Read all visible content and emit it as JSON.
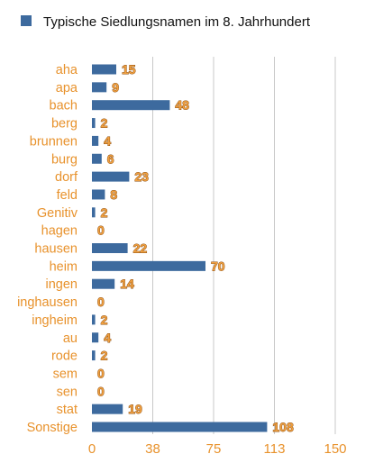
{
  "chart_data": {
    "type": "bar",
    "orientation": "horizontal",
    "legend_position": "top-left",
    "grid": true,
    "colors": {
      "bar": "#3d6a9e",
      "label": "#e8922c",
      "data_label": "#f0a040",
      "gridline": "#c8c8c8"
    },
    "series": [
      {
        "name": "Typische Siedlungsnamen im 8. Jahrhundert",
        "values": [
          15,
          9,
          48,
          2,
          4,
          6,
          23,
          8,
          2,
          0,
          22,
          70,
          14,
          0,
          2,
          4,
          2,
          0,
          0,
          19,
          108
        ]
      }
    ],
    "categories": [
      "aha",
      "apa",
      "bach",
      "berg",
      "brunnen",
      "burg",
      "dorf",
      "feld",
      "Genitiv",
      "hagen",
      "hausen",
      "heim",
      "ingen",
      "inghausen",
      "ingheim",
      "au",
      "rode",
      "sem",
      "sen",
      "stat",
      "Sonstige"
    ],
    "xlim": [
      0,
      150
    ],
    "xticks": [
      "0",
      "38",
      "75",
      "113",
      "150"
    ],
    "tick_values": [
      0,
      37.5,
      75,
      112.5,
      150
    ]
  }
}
